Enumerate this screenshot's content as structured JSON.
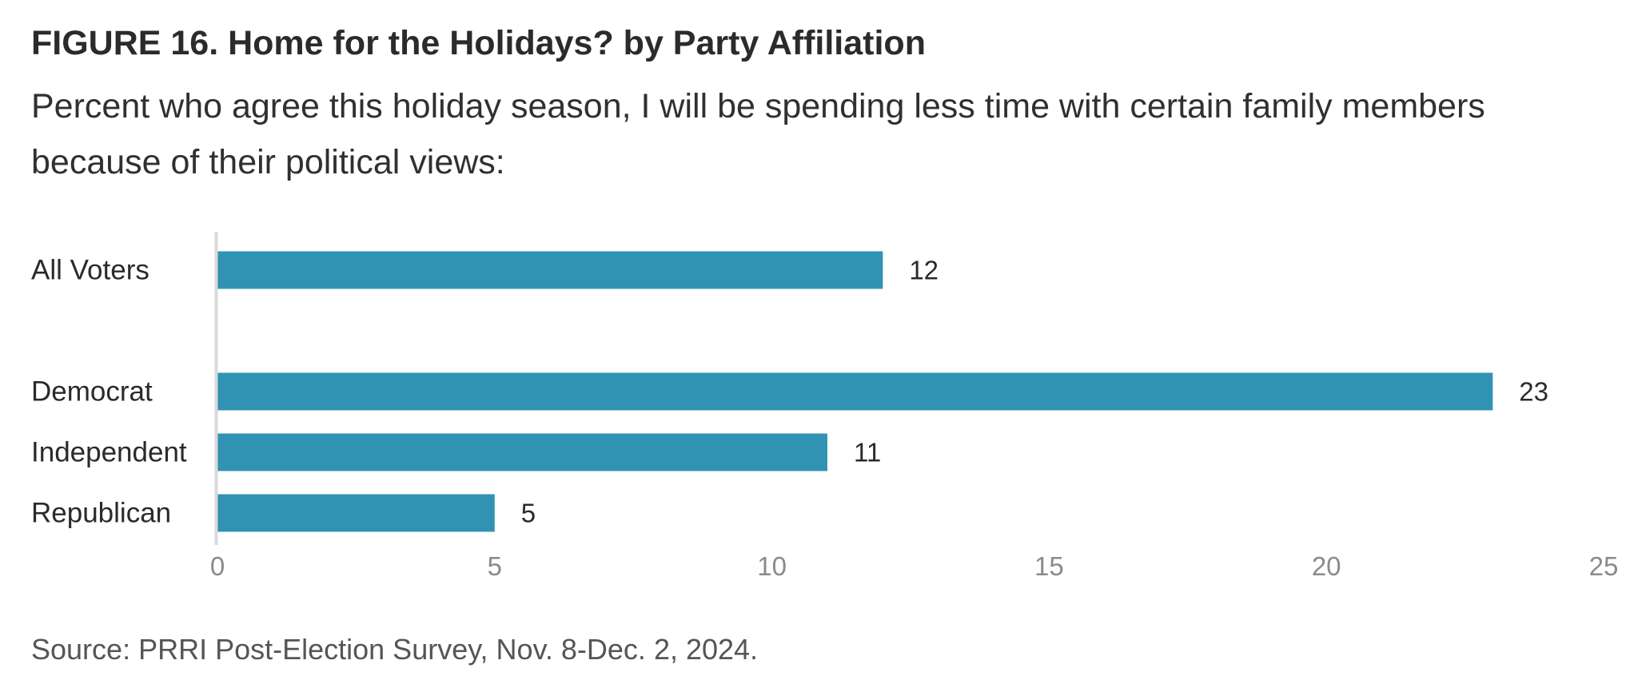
{
  "header": {
    "title": "FIGURE 16.  Home for the Holidays? by Party Affiliation",
    "subtitle": "Percent who agree this holiday season, I will be spending less time with certain family members because of their political views:"
  },
  "footer": {
    "source": "Source: PRRI Post-Election Survey, Nov. 8-Dec. 2, 2024."
  },
  "colors": {
    "bar": "#3193b3",
    "axis": "#d9d9d9"
  },
  "chart_data": {
    "type": "bar",
    "orientation": "horizontal",
    "categories": [
      "All Voters",
      "Democrat",
      "Independent",
      "Republican"
    ],
    "values": [
      12,
      23,
      11,
      5
    ],
    "xlim": [
      0,
      25
    ],
    "xticks": [
      0,
      5,
      10,
      15,
      20,
      25
    ],
    "xlabel": "",
    "ylabel": "",
    "grid": false,
    "legend": "none"
  }
}
